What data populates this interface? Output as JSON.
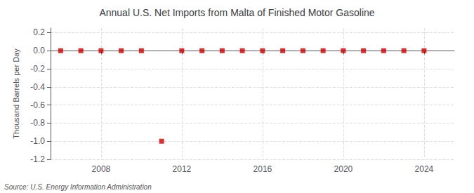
{
  "chart_data": {
    "type": "scatter",
    "title": "Annual U.S. Net Imports from Malta of Finished Motor Gasoline",
    "ylabel": "Thousand Barrels per Day",
    "annotations": [
      "Source: U.S. Energy Information Administration"
    ],
    "x": [
      2006,
      2007,
      2008,
      2009,
      2010,
      2011,
      2012,
      2013,
      2014,
      2015,
      2016,
      2017,
      2018,
      2019,
      2020,
      2021,
      2022,
      2023,
      2024
    ],
    "values": [
      0,
      0,
      0,
      0,
      0,
      -1,
      0,
      0,
      0,
      0,
      0,
      0,
      0,
      0,
      0,
      0,
      0,
      0,
      0
    ],
    "color": "#cc0000",
    "marker": "square",
    "xlim": [
      2005.5,
      2025.5
    ],
    "xticks": [
      2008,
      2012,
      2016,
      2020,
      2024
    ],
    "ylim": [
      -1.2,
      0.25
    ],
    "yticks": [
      0.2,
      {
        "value": 0.0,
        "label": "0.0"
      },
      -0.2,
      -0.4,
      -0.6,
      -0.8,
      {
        "value": -1.0,
        "label": "-1.0"
      },
      -1.2
    ],
    "grid": true
  }
}
